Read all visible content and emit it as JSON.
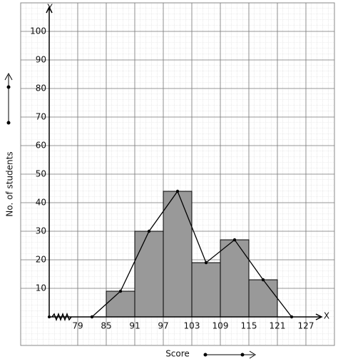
{
  "chart_data": {
    "type": "histogram",
    "x_label": "Score",
    "y_label": "No. of students",
    "x_axis_name": "X",
    "y_axis_name": "Y",
    "bins": [
      85,
      91,
      97,
      103,
      109,
      115,
      121
    ],
    "counts": [
      9,
      30,
      44,
      19,
      27,
      13
    ],
    "color": "#999999",
    "polygon": {
      "x": [
        82,
        88,
        94,
        100,
        106,
        112,
        118,
        124
      ],
      "values": [
        0,
        9,
        30,
        44,
        19,
        27,
        13,
        0
      ],
      "color": "#000000"
    },
    "xlim": [
      73,
      130
    ],
    "ylim": [
      0,
      108
    ],
    "xticks": [
      79,
      85,
      91,
      97,
      103,
      109,
      115,
      121,
      127
    ],
    "yticks": [
      10,
      20,
      30,
      40,
      50,
      60,
      70,
      80,
      90,
      100
    ],
    "grid": true
  }
}
